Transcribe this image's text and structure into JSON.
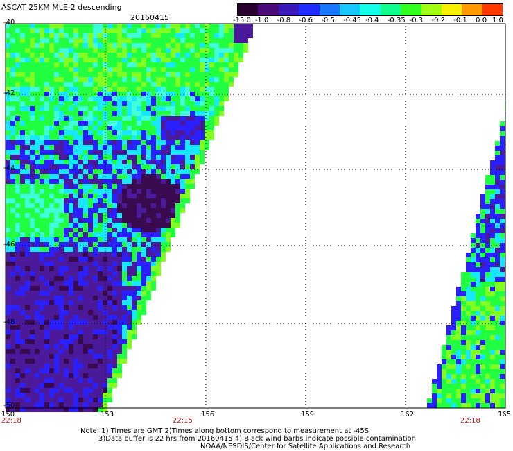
{
  "header": {
    "title": "ASCAT 25KM MLE-2 descending",
    "date": "20160415"
  },
  "colorbar": {
    "labels": [
      "-15.0",
      "-1.0",
      "-0.8",
      "-0.6",
      "-0.5",
      "-0.45",
      "-0.4",
      "-0.35",
      "-0.3",
      "-0.2",
      "-0.1",
      "0.0",
      "1.0"
    ],
    "colors": [
      "#2a0030",
      "#4a0a78",
      "#3a18b8",
      "#1f2cff",
      "#1a78ff",
      "#18c8ff",
      "#14ffe8",
      "#10ff90",
      "#30ff20",
      "#a0ff10",
      "#f8f000",
      "#ff9a00",
      "#ff3a00"
    ]
  },
  "axes": {
    "lat_labels": [
      "-40",
      "-42",
      "-44",
      "-46",
      "-48",
      "-50"
    ],
    "lon_labels": [
      "150",
      "153",
      "156",
      "159",
      "162",
      "165"
    ]
  },
  "times": {
    "left": "22:18",
    "middle": "22:15",
    "right": "22:18"
  },
  "notes": {
    "line1": "Note: 1) Times are GMT 2)Times along bottom correspond to measurement at -45S",
    "line2": "3)Data buffer is 22 hrs from 20160415 4) Black wind barbs indicate possible contamination",
    "line3": "NOAA/NESDIS/Center for Satellite Applications and Research"
  },
  "palette": {
    "deep": "#3a0a4e",
    "purple": "#4a1a9a",
    "blue": "#2a20ff",
    "cyan": "#18e8ff",
    "aqua": "#40ffd8",
    "green": "#20ff40",
    "lime": "#80ff20"
  }
}
